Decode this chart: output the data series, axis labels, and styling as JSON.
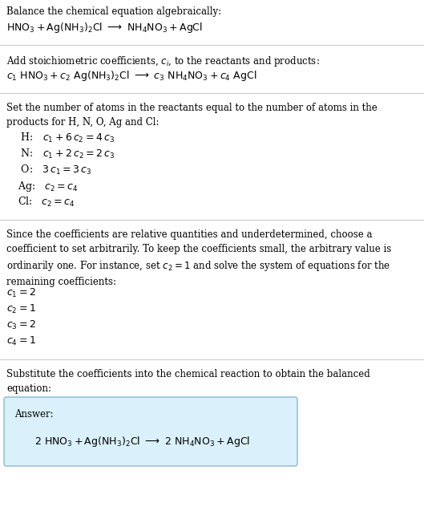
{
  "bg_color": "#ffffff",
  "text_color": "#000000",
  "section1_title": "Balance the chemical equation algebraically:",
  "section1_eq": "$\\mathrm{HNO_3 + Ag(NH_3)_2Cl \\ \\longrightarrow \\ NH_4NO_3 + AgCl}$",
  "section2_title": "Add stoichiometric coefficients, $c_i$, to the reactants and products:",
  "section2_eq": "$c_1\\ \\mathrm{HNO_3} + c_2\\ \\mathrm{Ag(NH_3)_2Cl} \\ \\longrightarrow \\ c_3\\ \\mathrm{NH_4NO_3} + c_4\\ \\mathrm{AgCl}$",
  "section3_title": "Set the number of atoms in the reactants equal to the number of atoms in the\nproducts for H, N, O, Ag and Cl:",
  "section3_lines": [
    " H:   $c_1 + 6\\,c_2 = 4\\,c_3$",
    " N:   $c_1 + 2\\,c_2 = 2\\,c_3$",
    " O:   $3\\,c_1 = 3\\,c_3$",
    "Ag:   $c_2 = c_4$",
    "Cl:   $c_2 = c_4$"
  ],
  "section4_title": "Since the coefficients are relative quantities and underdetermined, choose a\ncoefficient to set arbitrarily. To keep the coefficients small, the arbitrary value is\nordinarily one. For instance, set $c_2 = 1$ and solve the system of equations for the\nremaining coefficients:",
  "section4_lines": [
    "$c_1 = 2$",
    "$c_2 = 1$",
    "$c_3 = 2$",
    "$c_4 = 1$"
  ],
  "section5_title": "Substitute the coefficients into the chemical reaction to obtain the balanced\nequation:",
  "answer_label": "Answer:",
  "answer_eq": "$2\\ \\mathrm{HNO_3 + Ag(NH_3)_2Cl} \\ \\longrightarrow \\ 2\\ \\mathrm{NH_4NO_3 + AgCl}$",
  "answer_box_color": "#daf0fa",
  "answer_box_edge": "#88bbcc"
}
